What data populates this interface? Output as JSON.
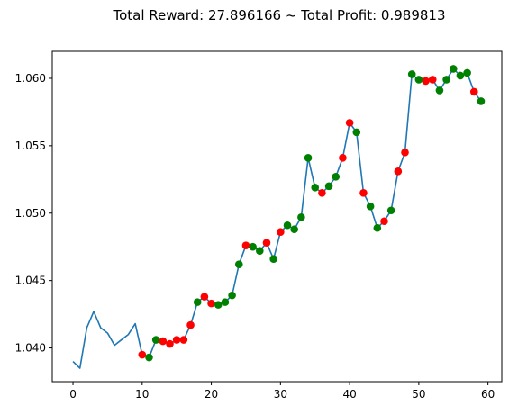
{
  "chart_data": {
    "type": "line",
    "title": "Total Reward: 27.896166 ~ Total Profit: 0.989813",
    "xlabel": "",
    "ylabel": "",
    "xlim": [
      -3,
      62
    ],
    "ylim": [
      1.0375,
      1.062
    ],
    "xticks": [
      0,
      10,
      20,
      30,
      40,
      50,
      60
    ],
    "yticks": [
      1.04,
      1.045,
      1.05,
      1.055,
      1.06
    ],
    "ytick_labels": [
      "1.040",
      "1.045",
      "1.050",
      "1.055",
      "1.060"
    ],
    "grid": false,
    "line_color": "#1f77b4",
    "series": [
      {
        "x": [
          0,
          1,
          2,
          3,
          4,
          5,
          6,
          7,
          8,
          9,
          10,
          11,
          12,
          13,
          14,
          15,
          16,
          17,
          18,
          19,
          20,
          21,
          22,
          23,
          24,
          25,
          26,
          27,
          28,
          29,
          30,
          31,
          32,
          33,
          34,
          35,
          36,
          37,
          38,
          39,
          40,
          41,
          42,
          43,
          44,
          45,
          46,
          47,
          48,
          49,
          50,
          51,
          52,
          53,
          54,
          55,
          56,
          57,
          58,
          59
        ],
        "values": [
          1.039,
          1.0385,
          1.0415,
          1.0427,
          1.0415,
          1.0411,
          1.0402,
          1.0406,
          1.041,
          1.0418,
          1.0395,
          1.0393,
          1.0406,
          1.0405,
          1.0403,
          1.0406,
          1.0406,
          1.0417,
          1.0434,
          1.0438,
          1.0433,
          1.0432,
          1.0434,
          1.0439,
          1.0462,
          1.0476,
          1.0475,
          1.0472,
          1.0478,
          1.0466,
          1.0486,
          1.0491,
          1.0488,
          1.0497,
          1.0541,
          1.0519,
          1.0515,
          1.052,
          1.0527,
          1.0541,
          1.0567,
          1.056,
          1.0515,
          1.0505,
          1.0489,
          1.0494,
          1.0502,
          1.0531,
          1.0545,
          1.0603,
          1.0599,
          1.0598,
          1.0599,
          1.0591,
          1.0599,
          1.0607,
          1.0602,
          1.0604,
          1.059,
          1.0583
        ]
      }
    ],
    "markers": {
      "red": {
        "color": "#ff0000",
        "x": [
          10,
          13,
          14,
          15,
          16,
          17,
          19,
          20,
          25,
          28,
          30,
          36,
          39,
          40,
          42,
          45,
          47,
          48,
          51,
          52,
          58
        ],
        "y": [
          1.0395,
          1.0405,
          1.0403,
          1.0406,
          1.0406,
          1.0417,
          1.0438,
          1.0433,
          1.0476,
          1.0478,
          1.0486,
          1.0515,
          1.0541,
          1.0567,
          1.0515,
          1.0494,
          1.0531,
          1.0545,
          1.0598,
          1.0599,
          1.059
        ]
      },
      "green": {
        "color": "#008000",
        "x": [
          11,
          12,
          18,
          21,
          22,
          23,
          24,
          26,
          27,
          29,
          31,
          32,
          33,
          34,
          35,
          37,
          38,
          41,
          43,
          44,
          46,
          49,
          50,
          53,
          54,
          55,
          56,
          57,
          59
        ],
        "y": [
          1.0393,
          1.0406,
          1.0434,
          1.0432,
          1.0434,
          1.0439,
          1.0462,
          1.0475,
          1.0472,
          1.0466,
          1.0491,
          1.0488,
          1.0497,
          1.0541,
          1.0519,
          1.052,
          1.0527,
          1.056,
          1.0505,
          1.0489,
          1.0502,
          1.0603,
          1.0599,
          1.0591,
          1.0599,
          1.0607,
          1.0602,
          1.0604,
          1.0583
        ]
      }
    }
  }
}
